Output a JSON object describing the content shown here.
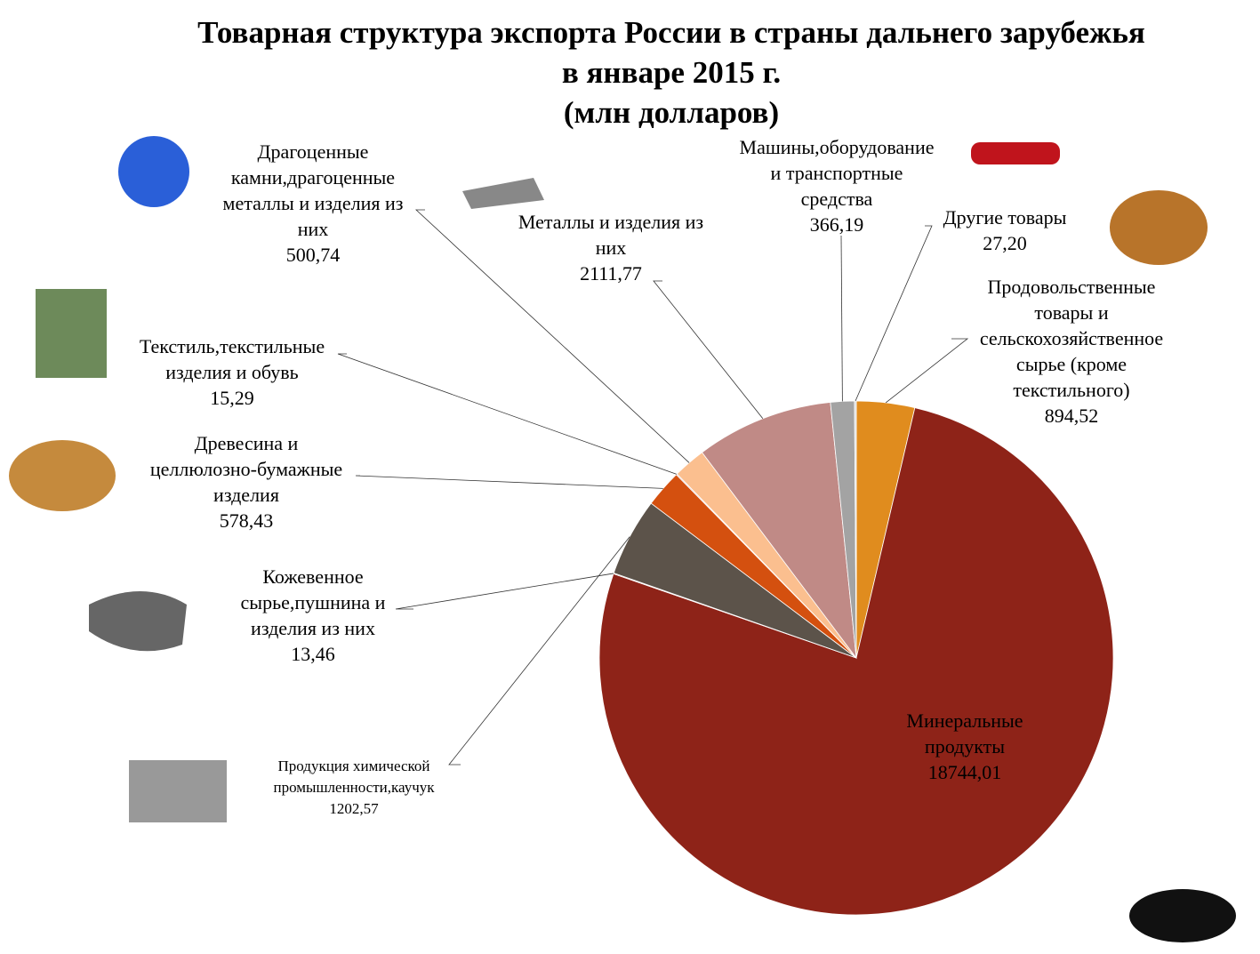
{
  "chart_data": {
    "type": "pie",
    "title": "Товарная структура экспорта России в страны дальнего зарубежья\nв январе 2015 г.\n(млн долларов)",
    "categories": [
      "Продовольственные\nтовары и\nсельскохозяйственное\nсырье (кроме\nтекстильного)",
      "Минеральные\nпродукты",
      "Кожевенное\nсырье,пушнина и\nизделия из них",
      "Продукция химической\nпромышленности,каучук",
      "Древесина и\nцеллюлозно-бумажные\nизделия",
      "Текстиль,текстильные\nизделия и обувь",
      "Драгоценные\nкамни,драгоценные\nметаллы и изделия из\nних",
      "Металлы и изделия из\nних",
      "Машины,оборудование\nи транспортные\nсредства",
      "Другие товары"
    ],
    "values": [
      894.52,
      18744.01,
      13.46,
      1202.57,
      578.43,
      15.29,
      500.74,
      2111.77,
      366.19,
      27.2
    ],
    "value_labels": [
      "894,52",
      "18744,01",
      "13,46",
      "1202,57",
      "578,43",
      "15,29",
      "500,74",
      "2111,77",
      "366,19",
      "27,20"
    ],
    "colors": [
      "#e08c1e",
      "#8e2318",
      "#7a7a50",
      "#5c534a",
      "#d4500f",
      "#c9a0a0",
      "#fbbf8f",
      "#c08a86",
      "#a3a3a3",
      "#d9d9d9"
    ]
  }
}
